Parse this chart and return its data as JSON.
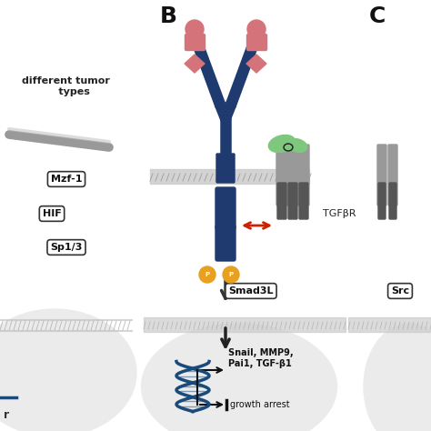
{
  "bg_color": "#ffffff",
  "dark_blue": "#1f3a6e",
  "pink_red": "#d4737a",
  "gray": "#aaaaaa",
  "dark_gray": "#555555",
  "green": "#7ec87e",
  "orange": "#e8a020",
  "red_arrow": "#cc2200",
  "teal_blue": "#1a4a7a",
  "label_B": "B",
  "label_C": "C",
  "text_tumor": "different tumor\n     types",
  "text_Mzf1": "Mzf-1",
  "text_HIF": "HIF",
  "text_Sp13": "Sp1/3",
  "text_TGFbR": "TGFβR",
  "text_Smad3L": "Smad3L",
  "text_genes": "Snail, MMP9,\nPai1, TGF-β1",
  "text_growth": "growth arrest",
  "text_Src": "Src"
}
